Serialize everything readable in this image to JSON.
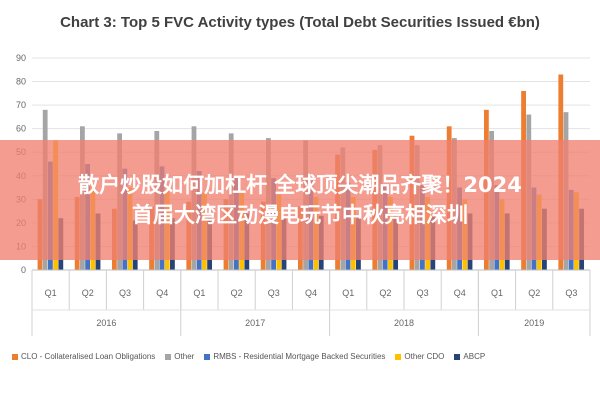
{
  "chart_data": {
    "type": "bar",
    "title": "Chart 3: Top 5 FVC Activity types (Total Debt Securities Issued €bn)",
    "ylim": [
      0,
      90
    ],
    "yticks": [
      0,
      10,
      20,
      30,
      40,
      50,
      60,
      70,
      80,
      90
    ],
    "grid": true,
    "legend_position": "bottom",
    "categories": [
      "Q1",
      "Q2",
      "Q3",
      "Q4",
      "Q1",
      "Q2",
      "Q3",
      "Q4",
      "Q1",
      "Q2",
      "Q3",
      "Q4",
      "Q1",
      "Q2",
      "Q3"
    ],
    "groups": [
      {
        "label": "2016",
        "count": 4
      },
      {
        "label": "2017",
        "count": 4
      },
      {
        "label": "2018",
        "count": 4
      },
      {
        "label": "2019",
        "count": 3
      }
    ],
    "series": [
      {
        "name": "CLO - Collateralised Loan Obligations",
        "color": "#ED7D31",
        "values": [
          30,
          31,
          26,
          27,
          29,
          30,
          29,
          27,
          49,
          51,
          57,
          61,
          68,
          76,
          83
        ]
      },
      {
        "name": "Other",
        "color": "#A5A5A5",
        "values": [
          68,
          61,
          58,
          59,
          61,
          58,
          56,
          55,
          52,
          53,
          53,
          56,
          59,
          66,
          67
        ]
      },
      {
        "name": "RMBS - Residential Mortgage Backed Securities",
        "color": "#4472C4",
        "values": [
          46,
          45,
          43,
          44,
          42,
          40,
          39,
          38,
          37,
          36,
          36,
          35,
          36,
          35,
          34
        ]
      },
      {
        "name": "Other CDO",
        "color": "#FFC000",
        "values": [
          55,
          36,
          35,
          34,
          33,
          33,
          32,
          31,
          31,
          31,
          31,
          30,
          30,
          32,
          33
        ]
      },
      {
        "name": "ABCP",
        "color": "#264478",
        "values": [
          22,
          24,
          21,
          22,
          23,
          24,
          22,
          23,
          22,
          23,
          23,
          24,
          24,
          26,
          26
        ]
      }
    ]
  },
  "overlay": {
    "line1": "散户炒股如何加杠杆 全球顶尖潮品齐聚！2024",
    "line2": "首届大湾区动漫电玩节中秋亮相深圳"
  }
}
